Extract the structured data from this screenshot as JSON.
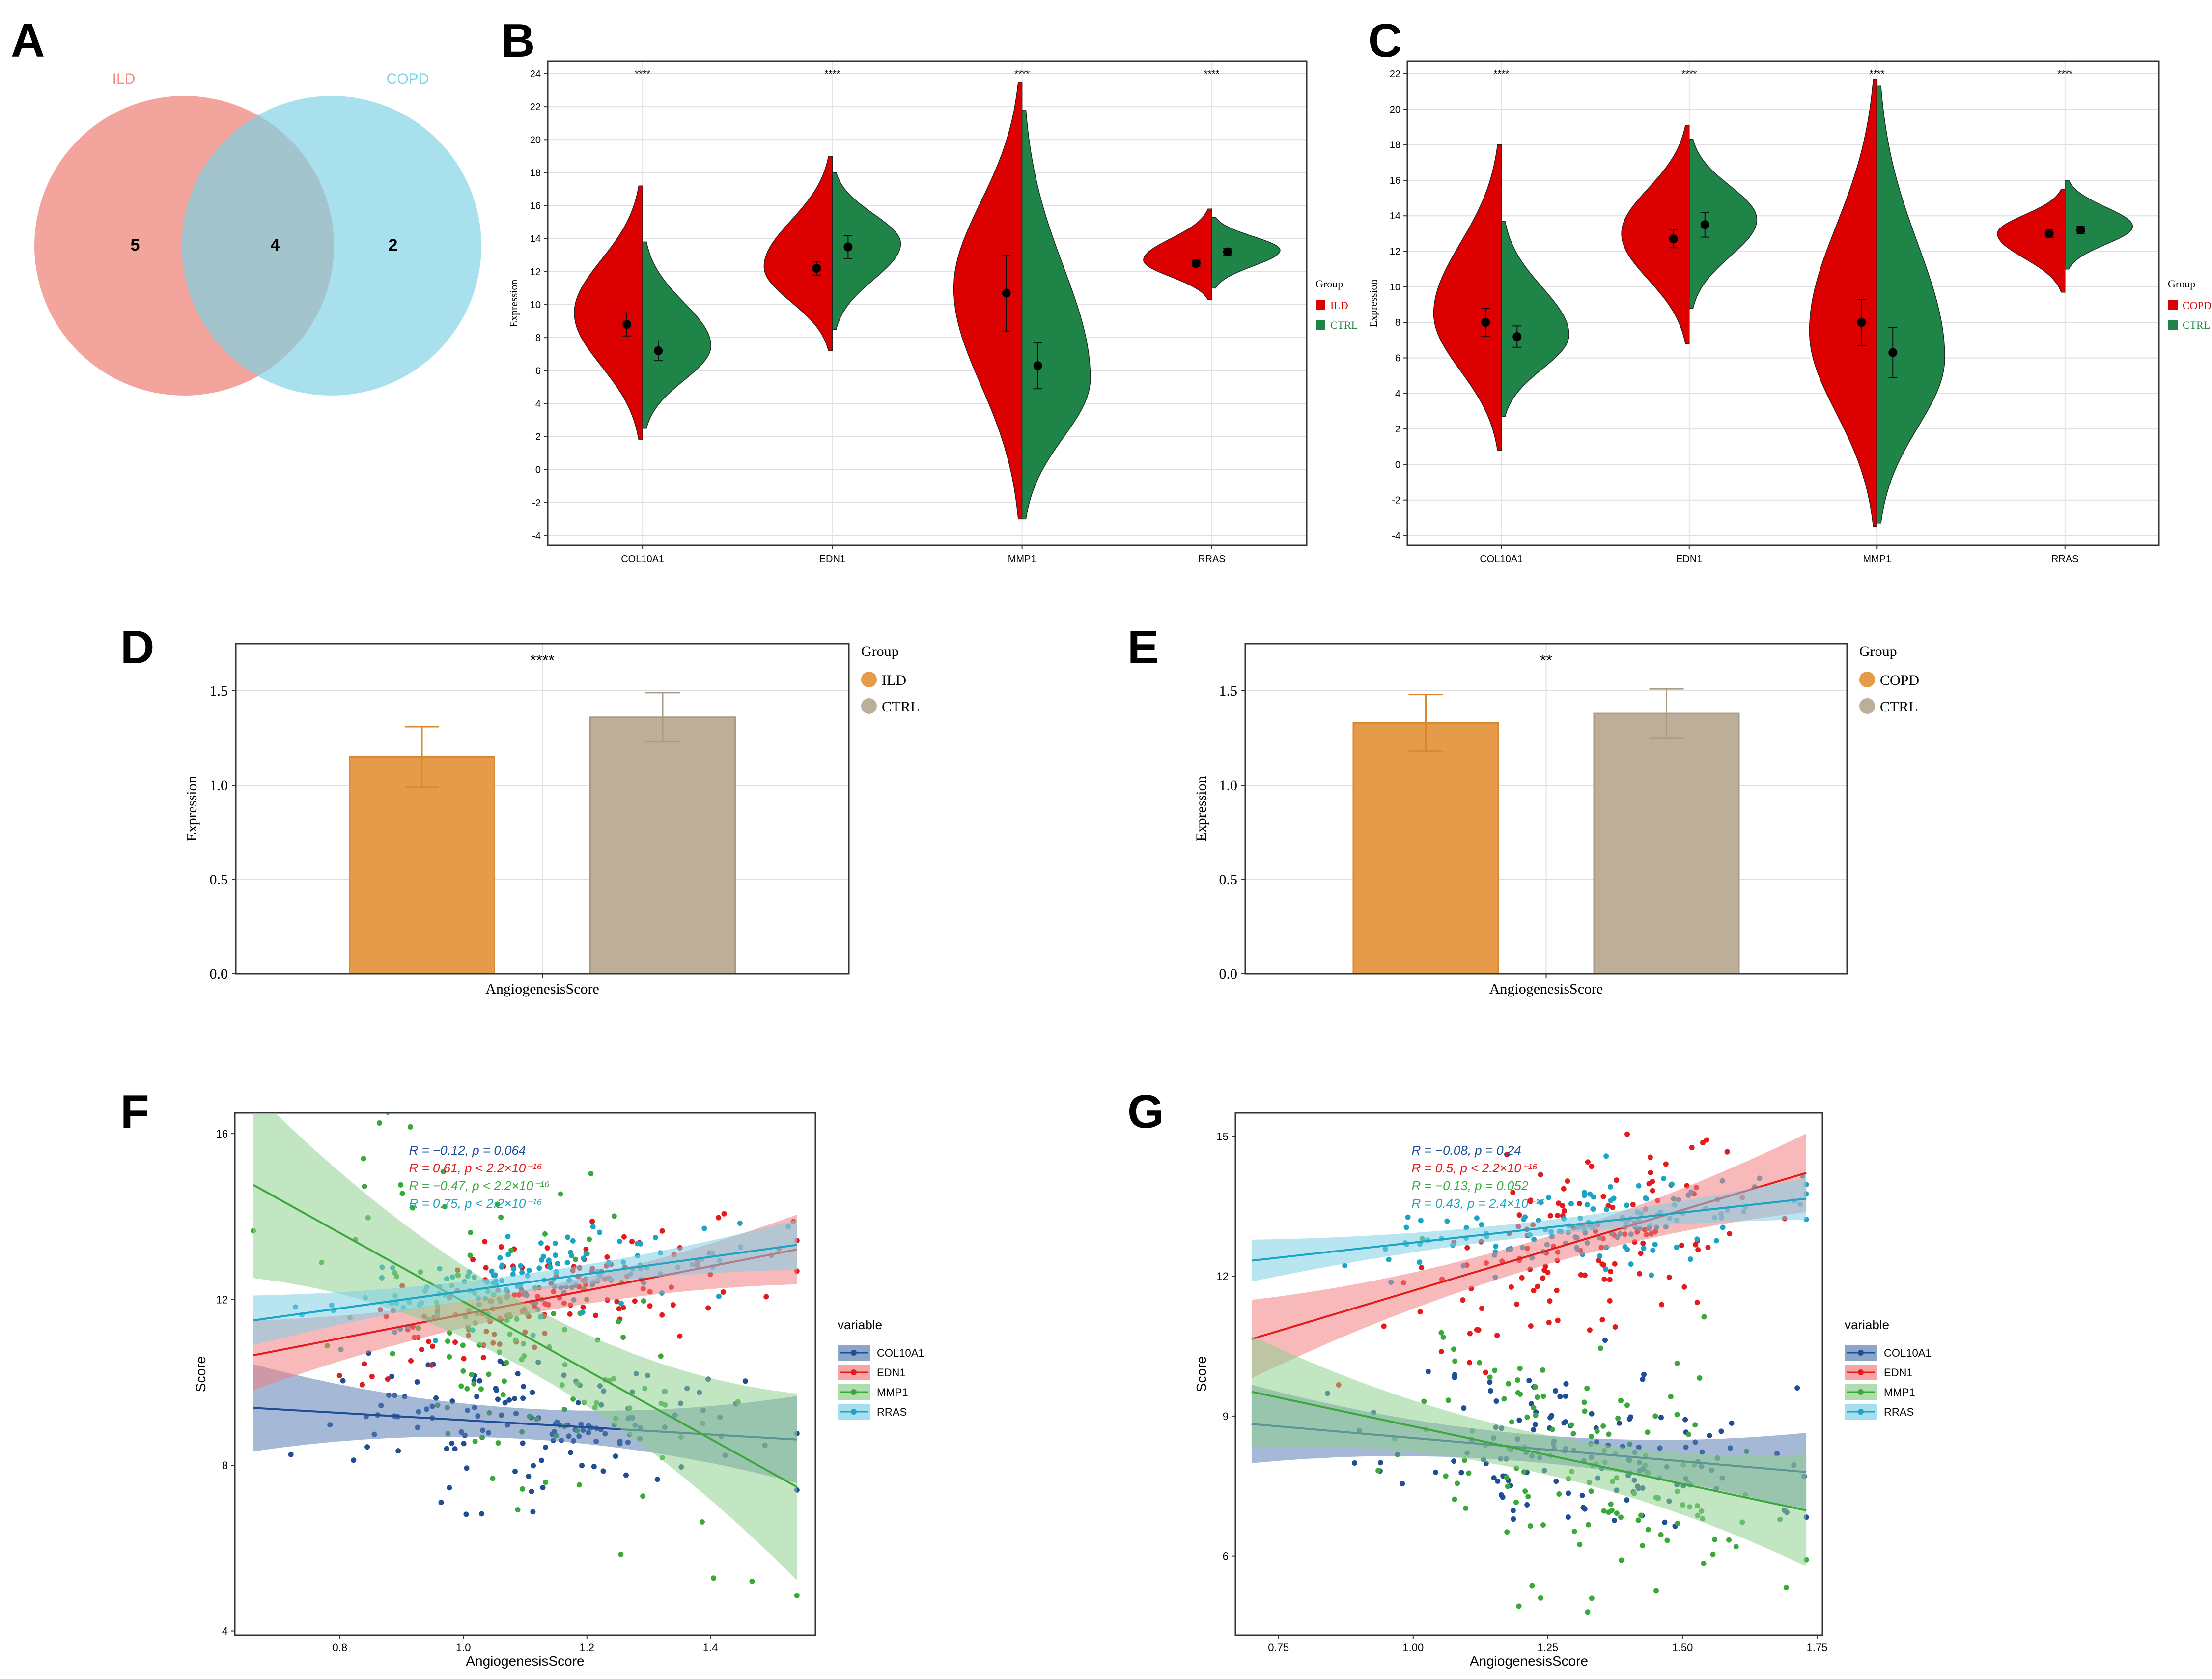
{
  "panels": {
    "A": {
      "letter": "A",
      "type": "venn",
      "sets": [
        {
          "name": "ILD",
          "color": "#f08a80",
          "only": 5
        },
        {
          "name": "COPD",
          "color": "#7fd3e4",
          "only": 2
        }
      ],
      "intersection": 4
    },
    "B": {
      "letter": "B",
      "type": "split-violin",
      "ylabel": "Expression",
      "ylim": [
        -4,
        24
      ],
      "yticks": [
        -4,
        -2,
        0,
        2,
        4,
        6,
        8,
        10,
        12,
        14,
        16,
        18,
        20,
        22,
        24
      ],
      "legend_title": "Group",
      "groups": [
        "ILD",
        "CTRL"
      ],
      "colors": [
        "#dd0000",
        "#1f8447"
      ],
      "genes": [
        {
          "name": "COL10A1",
          "sig": "****",
          "left": {
            "min": 1.8,
            "max": 17.2,
            "mode": 9.5,
            "mean": 8.8,
            "err": 0.7
          },
          "right": {
            "min": 2.5,
            "max": 13.8,
            "mode": 7.5,
            "mean": 7.2,
            "err": 0.6
          }
        },
        {
          "name": "EDN1",
          "sig": "****",
          "left": {
            "min": 7.2,
            "max": 19.0,
            "mode": 12.3,
            "mean": 12.2,
            "err": 0.4
          },
          "right": {
            "min": 8.5,
            "max": 18.0,
            "mode": 13.7,
            "mean": 13.5,
            "err": 0.7
          }
        },
        {
          "name": "MMP1",
          "sig": "****",
          "left": {
            "min": -3.0,
            "max": 23.5,
            "mode": 11.0,
            "mean": 10.7,
            "err": 2.3
          },
          "right": {
            "min": -3.0,
            "max": 21.8,
            "mode": 5.5,
            "mean": 6.3,
            "err": 1.4
          }
        },
        {
          "name": "RRAS",
          "sig": "****",
          "left": {
            "min": 10.3,
            "max": 15.8,
            "mode": 12.7,
            "mean": 12.5,
            "err": 0.2
          },
          "right": {
            "min": 11.0,
            "max": 15.3,
            "mode": 13.3,
            "mean": 13.2,
            "err": 0.2
          }
        }
      ]
    },
    "C": {
      "letter": "C",
      "type": "split-violin",
      "ylabel": "Expression",
      "ylim": [
        -4,
        22
      ],
      "yticks": [
        -4,
        -2,
        0,
        2,
        4,
        6,
        8,
        10,
        12,
        14,
        16,
        18,
        20,
        22
      ],
      "legend_title": "Group",
      "groups": [
        "COPD",
        "CTRL"
      ],
      "colors": [
        "#dd0000",
        "#1f8447"
      ],
      "genes": [
        {
          "name": "COL10A1",
          "sig": "****",
          "left": {
            "min": 0.8,
            "max": 18.0,
            "mode": 8.5,
            "mean": 8.0,
            "err": 0.8
          },
          "right": {
            "min": 2.7,
            "max": 13.7,
            "mode": 7.3,
            "mean": 7.2,
            "err": 0.6
          }
        },
        {
          "name": "EDN1",
          "sig": "****",
          "left": {
            "min": 6.8,
            "max": 19.1,
            "mode": 13.0,
            "mean": 12.7,
            "err": 0.5
          },
          "right": {
            "min": 8.8,
            "max": 18.3,
            "mode": 13.8,
            "mean": 13.5,
            "err": 0.7
          }
        },
        {
          "name": "MMP1",
          "sig": "****",
          "left": {
            "min": -3.5,
            "max": 21.7,
            "mode": 7.5,
            "mean": 8.0,
            "err": 1.3
          },
          "right": {
            "min": -3.3,
            "max": 21.3,
            "mode": 6.0,
            "mean": 6.3,
            "err": 1.4
          }
        },
        {
          "name": "RRAS",
          "sig": "****",
          "left": {
            "min": 9.7,
            "max": 15.5,
            "mode": 13.0,
            "mean": 13.0,
            "err": 0.2
          },
          "right": {
            "min": 11.0,
            "max": 16.0,
            "mode": 13.4,
            "mean": 13.2,
            "err": 0.2
          }
        }
      ]
    },
    "D": {
      "letter": "D",
      "type": "bar",
      "ylabel": "Expression",
      "xlabel": "AngiogenesisScore",
      "ylim": [
        0,
        1.75
      ],
      "yticks": [
        "0.0",
        "0.5",
        "1.0",
        "1.5"
      ],
      "sig": "****",
      "legend_title": "Group",
      "bars": [
        {
          "name": "ILD",
          "value": 1.15,
          "sd": 0.16,
          "color": "#e69b4a",
          "edge": "#d8882e"
        },
        {
          "name": "CTRL",
          "value": 1.36,
          "sd": 0.13,
          "color": "#bcae98",
          "edge": "#a99a84"
        }
      ]
    },
    "E": {
      "letter": "E",
      "type": "bar",
      "ylabel": "Expression",
      "xlabel": "AngiogenesisScore",
      "ylim": [
        0,
        1.75
      ],
      "yticks": [
        "0.0",
        "0.5",
        "1.0",
        "1.5"
      ],
      "sig": "**",
      "legend_title": "Group",
      "bars": [
        {
          "name": "COPD",
          "value": 1.33,
          "sd": 0.15,
          "color": "#e69b4a",
          "edge": "#d8882e"
        },
        {
          "name": "CTRL",
          "value": 1.38,
          "sd": 0.13,
          "color": "#bcae98",
          "edge": "#a99a84"
        }
      ]
    },
    "F": {
      "letter": "F",
      "type": "scatter",
      "xlabel": "AngiogenesisScore",
      "ylabel": "Score",
      "xlim": [
        0.63,
        1.57
      ],
      "ylim": [
        3.9,
        16.5
      ],
      "xticks": [
        "0.8",
        "1.0",
        "1.2",
        "1.4"
      ],
      "yticks": [
        "4",
        "8",
        "12",
        "16"
      ],
      "xcenter": 1.12,
      "xspread": 0.16,
      "npts": 140,
      "seed": 7,
      "legend_title": "variable",
      "annotations": [
        "R = −0.12, p = 0.064",
        "R = 0.61, p < 2.2×10⁻¹⁶",
        "R = −0.47, p < 2.2×10⁻¹⁶",
        "R = 0.75, p < 2.2×10⁻¹⁶"
      ],
      "series": [
        {
          "name": "COL10A1",
          "color": "#1f4e96",
          "fill": "#5b7fb5",
          "intercept": 9.96,
          "slope": -0.87,
          "noise": 0.8,
          "band": 0.35
        },
        {
          "name": "EDN1",
          "color": "#e41a1c",
          "fill": "#f08080",
          "intercept": 8.74,
          "slope": 2.9,
          "noise": 0.7,
          "band": 0.28
        },
        {
          "name": "MMP1",
          "color": "#3aa93a",
          "fill": "#8fcf8f",
          "intercept": 20.23,
          "slope": -8.28,
          "noise": 1.9,
          "band": 0.75
        },
        {
          "name": "RRAS",
          "color": "#1aa5c7",
          "fill": "#7fd0e6",
          "intercept": 10.13,
          "slope": 2.07,
          "noise": 0.5,
          "band": 0.2
        }
      ]
    },
    "G": {
      "letter": "G",
      "type": "scatter",
      "xlabel": "AngiogenesisScore",
      "ylabel": "Score",
      "xlim": [
        0.67,
        1.76
      ],
      "ylim": [
        4.3,
        15.5
      ],
      "xticks": [
        "0.75",
        "1.00",
        "1.25",
        "1.50",
        "1.75"
      ],
      "yticks": [
        "6",
        "9",
        "12",
        "15"
      ],
      "xcenter": 1.32,
      "xspread": 0.17,
      "npts": 140,
      "seed": 11,
      "legend_title": "variable",
      "annotations": [
        "R = −0.08, p = 0.24",
        "R = 0.5, p < 2.2×10⁻¹⁶",
        "R = −0.13, p = 0.052",
        "R = 0.43, p = 2.4×10⁻¹⁶"
      ],
      "series": [
        {
          "name": "COL10A1",
          "color": "#1f4e96",
          "fill": "#5b7fb5",
          "intercept": 9.53,
          "slope": -1.0,
          "noise": 0.9,
          "band": 0.28
        },
        {
          "name": "EDN1",
          "color": "#e41a1c",
          "fill": "#f08080",
          "intercept": 8.23,
          "slope": 3.46,
          "noise": 0.9,
          "band": 0.28
        },
        {
          "name": "MMP1",
          "color": "#3aa93a",
          "fill": "#8fcf8f",
          "intercept": 11.25,
          "slope": -2.47,
          "noise": 1.4,
          "band": 0.4
        },
        {
          "name": "RRAS",
          "color": "#1aa5c7",
          "fill": "#7fd0e6",
          "intercept": 11.43,
          "slope": 1.29,
          "noise": 0.45,
          "band": 0.15
        }
      ]
    }
  }
}
